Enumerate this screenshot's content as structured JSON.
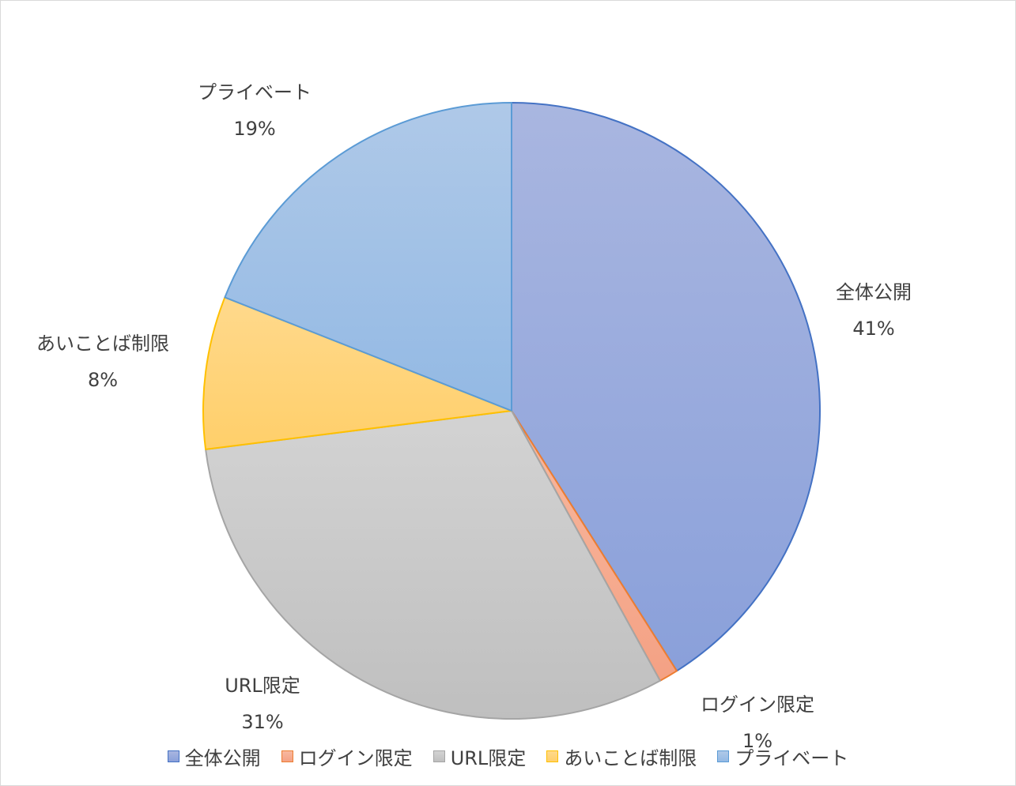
{
  "chart_data": {
    "type": "pie",
    "categories": [
      "全体公開",
      "ログイン限定",
      "URL限定",
      "あいことば制限",
      "プライベート"
    ],
    "values": [
      41,
      1,
      31,
      8,
      19
    ],
    "labels": [
      {
        "name": "全体公開",
        "pct": "41%"
      },
      {
        "name": "ログイン限定",
        "pct": "1%"
      },
      {
        "name": "URL限定",
        "pct": "31%"
      },
      {
        "name": "あいことば制限",
        "pct": "8%"
      },
      {
        "name": "プライベート",
        "pct": "19%"
      }
    ],
    "colors": {
      "fill_top": [
        "#A9B6E0",
        "#F8B9A0",
        "#D3D3D3",
        "#FFD98C",
        "#AFC9E8"
      ],
      "fill_bottom": [
        "#8AA0DA",
        "#F4A184",
        "#BFBFBF",
        "#FFCF6A",
        "#93B9E4"
      ],
      "stroke": [
        "#4472C4",
        "#ED7D31",
        "#A5A5A5",
        "#FFC000",
        "#5B9BD5"
      ]
    },
    "start_angle_deg": 0,
    "direction": "clockwise",
    "legend_position": "bottom",
    "title": ""
  }
}
